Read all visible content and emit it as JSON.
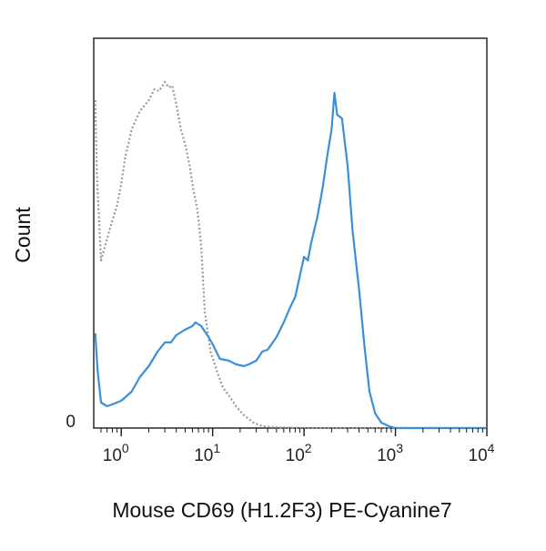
{
  "chart_data": {
    "type": "line",
    "title": "",
    "xlabel": "Mouse CD69 (H1.2F3) PE-Cyanine7",
    "ylabel": "Count",
    "x_scale": "log",
    "xlim": [
      0.5,
      10000
    ],
    "ylim": [
      0,
      100
    ],
    "x_ticks": [
      {
        "base": "10",
        "exp": "0",
        "value": 1
      },
      {
        "base": "10",
        "exp": "1",
        "value": 10
      },
      {
        "base": "10",
        "exp": "2",
        "value": 100
      },
      {
        "base": "10",
        "exp": "3",
        "value": 1000
      },
      {
        "base": "10",
        "exp": "4",
        "value": 10000
      }
    ],
    "y_ticks": [
      {
        "label": "0",
        "value": 0
      }
    ],
    "grid": false,
    "legend": "none",
    "series": [
      {
        "color": "#9a9a9a",
        "line_style": "dotted",
        "points": [
          [
            0.52,
            90
          ],
          [
            0.54,
            70
          ],
          [
            0.6,
            46
          ],
          [
            0.7,
            52
          ],
          [
            0.8,
            57
          ],
          [
            0.9,
            61
          ],
          [
            1.0,
            67
          ],
          [
            1.1,
            74
          ],
          [
            1.3,
            82
          ],
          [
            1.6,
            87
          ],
          [
            2.0,
            90
          ],
          [
            2.3,
            93
          ],
          [
            2.6,
            92.5
          ],
          [
            3.0,
            95
          ],
          [
            3.3,
            93.5
          ],
          [
            3.6,
            94
          ],
          [
            4.0,
            89
          ],
          [
            4.5,
            82
          ],
          [
            5.0,
            78
          ],
          [
            5.6,
            72
          ],
          [
            6.2,
            65
          ],
          [
            6.8,
            60
          ],
          [
            7.5,
            50
          ],
          [
            8.2,
            32
          ],
          [
            9.5,
            21
          ],
          [
            11,
            16
          ],
          [
            13,
            11
          ],
          [
            15,
            9
          ],
          [
            18,
            6
          ],
          [
            22,
            3.5
          ],
          [
            28,
            1.5
          ],
          [
            35,
            0.5
          ],
          [
            50,
            0.2
          ],
          [
            100,
            0
          ],
          [
            10000,
            0
          ]
        ]
      },
      {
        "color": "#3a8fd6",
        "line_style": "solid",
        "points": [
          [
            0.52,
            26
          ],
          [
            0.55,
            16
          ],
          [
            0.6,
            7
          ],
          [
            0.7,
            6
          ],
          [
            0.8,
            6.5
          ],
          [
            1.0,
            7.5
          ],
          [
            1.3,
            10
          ],
          [
            1.6,
            14
          ],
          [
            2.0,
            17
          ],
          [
            2.5,
            21
          ],
          [
            3.0,
            23.5
          ],
          [
            3.5,
            23.5
          ],
          [
            4.0,
            25.5
          ],
          [
            5.0,
            27
          ],
          [
            6.0,
            28
          ],
          [
            6.5,
            29
          ],
          [
            7.5,
            28
          ],
          [
            9.0,
            25
          ],
          [
            10,
            23
          ],
          [
            12,
            19
          ],
          [
            15,
            18.5
          ],
          [
            18,
            17.5
          ],
          [
            22,
            17
          ],
          [
            25,
            17.5
          ],
          [
            30,
            18.5
          ],
          [
            35,
            21
          ],
          [
            40,
            21.5
          ],
          [
            50,
            25
          ],
          [
            60,
            29
          ],
          [
            70,
            33
          ],
          [
            80,
            36
          ],
          [
            100,
            47
          ],
          [
            110,
            46
          ],
          [
            120,
            51
          ],
          [
            140,
            58
          ],
          [
            160,
            66
          ],
          [
            180,
            75
          ],
          [
            200,
            82
          ],
          [
            215,
            92
          ],
          [
            230,
            86
          ],
          [
            260,
            85
          ],
          [
            300,
            72
          ],
          [
            340,
            54
          ],
          [
            400,
            38
          ],
          [
            460,
            22
          ],
          [
            520,
            10
          ],
          [
            600,
            4
          ],
          [
            700,
            1.5
          ],
          [
            850,
            0.5
          ],
          [
            1000,
            0
          ],
          [
            10000,
            0
          ]
        ]
      }
    ]
  }
}
